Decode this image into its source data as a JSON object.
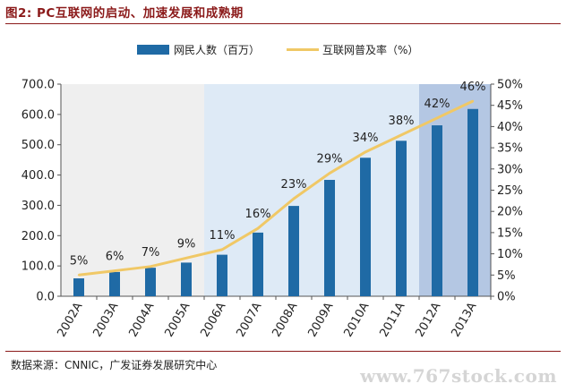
{
  "title": "图2: PC互联网的启动、加速发展和成熟期",
  "source": "数据来源：CNNIC，广发证券发展研究中心",
  "watermark": "www.767stock.com",
  "chart_data": {
    "type": "bar",
    "categories": [
      "2002A",
      "2003A",
      "2004A",
      "2005A",
      "2006A",
      "2007A",
      "2008A",
      "2009A",
      "2010A",
      "2011A",
      "2012A",
      "2013A"
    ],
    "series": [
      {
        "name": "网民人数（百万）",
        "type": "bar",
        "axis": "left",
        "values": [
          59,
          80,
          94,
          111,
          137,
          210,
          298,
          384,
          457,
          513,
          564,
          618
        ],
        "color": "#1f6aa5"
      },
      {
        "name": "互联网普及率（%）",
        "type": "line",
        "axis": "right",
        "values": [
          5,
          6,
          7,
          9,
          11,
          16,
          23,
          29,
          34,
          38,
          42,
          46
        ],
        "labels": [
          "5%",
          "6%",
          "7%",
          "9%",
          "11%",
          "16%",
          "23%",
          "29%",
          "34%",
          "38%",
          "42%",
          "46%"
        ],
        "color": "#f0c866"
      }
    ],
    "y_left": {
      "min": 0,
      "max": 700,
      "step": 100,
      "tick_labels": [
        "0.0",
        "100.0",
        "200.0",
        "300.0",
        "400.0",
        "500.0",
        "600.0",
        "700.0"
      ]
    },
    "y_right": {
      "min": 0,
      "max": 50,
      "step": 5,
      "tick_labels": [
        "0%",
        "5%",
        "10%",
        "15%",
        "20%",
        "25%",
        "30%",
        "35%",
        "40%",
        "45%",
        "50%"
      ]
    },
    "phase_colors": [
      "#efefef",
      "#deeaf6",
      "#b4c7e3"
    ],
    "legend_position": "top-center",
    "grid": false
  }
}
